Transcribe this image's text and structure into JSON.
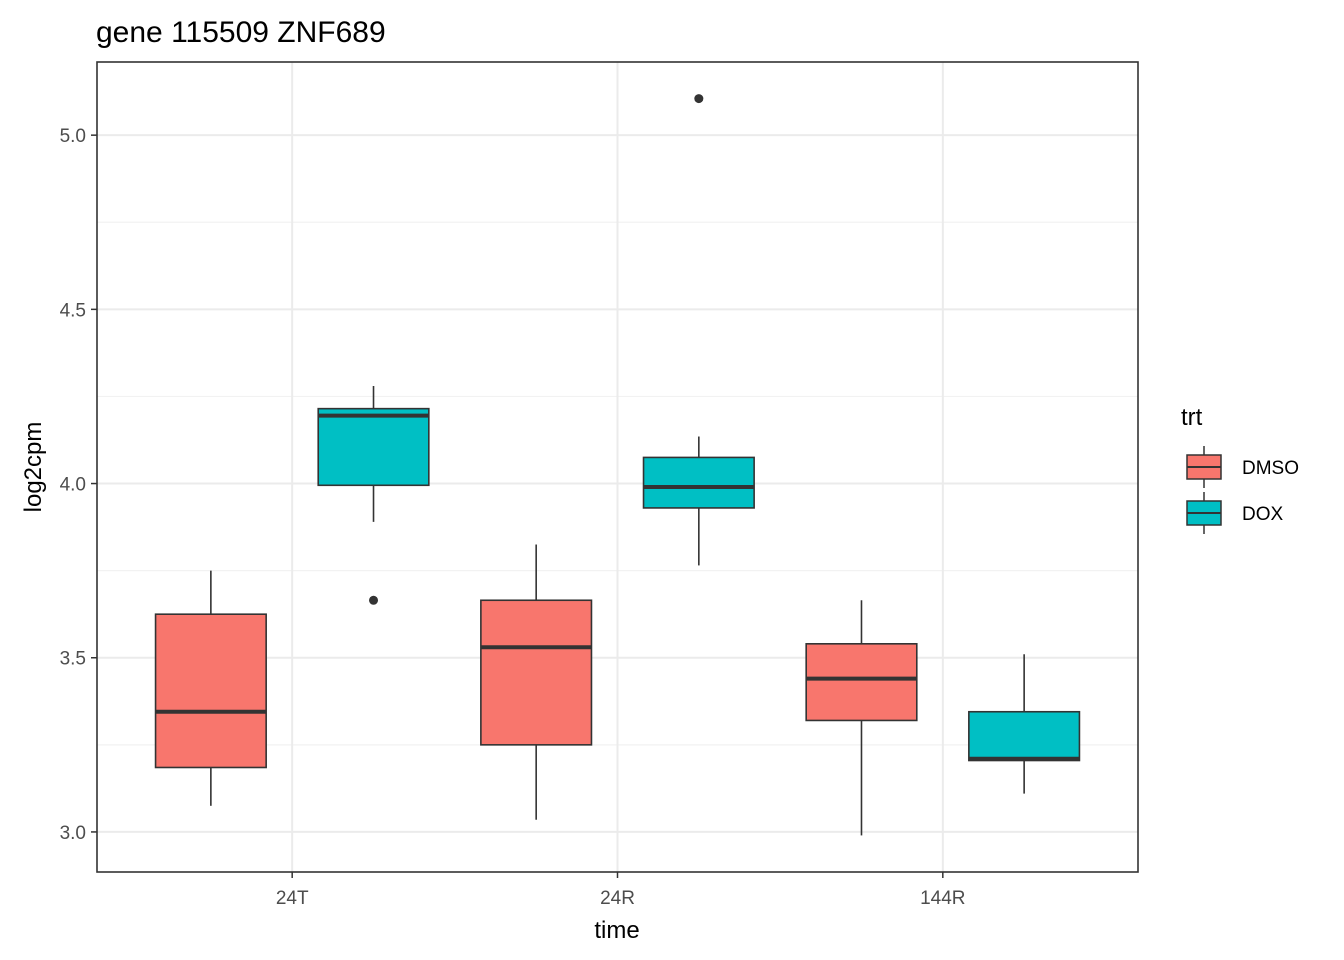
{
  "chart_data": {
    "type": "boxplot",
    "title": "gene 115509 ZNF689",
    "xlabel": "time",
    "ylabel": "log2cpm",
    "categories": [
      "24T",
      "24R",
      "144R"
    ],
    "ylim": [
      2.885,
      5.21
    ],
    "yticks": [
      3.0,
      3.5,
      4.0,
      4.5,
      5.0
    ],
    "ytick_labels": [
      "3.0",
      "3.5",
      "4.0",
      "4.5",
      "5.0"
    ],
    "grid": true,
    "legend": {
      "title": "trt",
      "position": "right",
      "entries": [
        {
          "name": "DMSO",
          "color": "#F8766D"
        },
        {
          "name": "DOX",
          "color": "#00BFC4"
        }
      ]
    },
    "series": [
      {
        "name": "DMSO",
        "color": "#F8766D",
        "boxes": [
          {
            "category": "24T",
            "whisker_low": 3.075,
            "q1": 3.185,
            "median": 3.345,
            "q3": 3.625,
            "whisker_high": 3.75,
            "outliers": []
          },
          {
            "category": "24R",
            "whisker_low": 3.035,
            "q1": 3.25,
            "median": 3.53,
            "q3": 3.665,
            "whisker_high": 3.825,
            "outliers": []
          },
          {
            "category": "144R",
            "whisker_low": 2.99,
            "q1": 3.32,
            "median": 3.44,
            "q3": 3.54,
            "whisker_high": 3.665,
            "outliers": []
          }
        ]
      },
      {
        "name": "DOX",
        "color": "#00BFC4",
        "boxes": [
          {
            "category": "24T",
            "whisker_low": 3.89,
            "q1": 3.995,
            "median": 4.195,
            "q3": 4.215,
            "whisker_high": 4.28,
            "outliers": [
              3.665
            ]
          },
          {
            "category": "24R",
            "whisker_low": 3.765,
            "q1": 3.93,
            "median": 3.99,
            "q3": 4.075,
            "whisker_high": 4.135,
            "outliers": [
              5.105
            ]
          },
          {
            "category": "144R",
            "whisker_low": 3.11,
            "q1": 3.205,
            "median": 3.21,
            "q3": 3.345,
            "whisker_high": 3.51,
            "outliers": []
          }
        ]
      }
    ]
  }
}
